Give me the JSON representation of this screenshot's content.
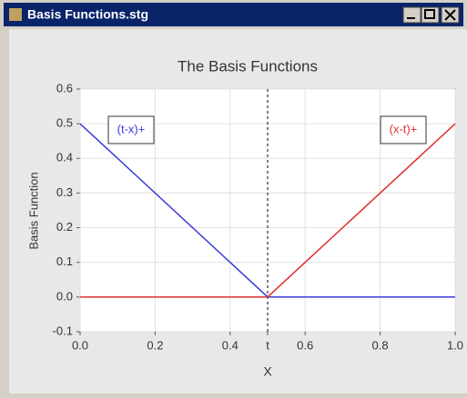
{
  "window": {
    "title": "Basis Functions.stg"
  },
  "chart_data": {
    "type": "line",
    "title": "The Basis Functions",
    "xlabel": "X",
    "ylabel": "Basis Function",
    "x": [
      0,
      0.5,
      1
    ],
    "series": [
      {
        "name": "(t-x)+",
        "color": "#3a3adc",
        "values": [
          0.5,
          0,
          0
        ]
      },
      {
        "name": "(x-t)+",
        "color": "#e03030",
        "values": [
          0,
          0,
          0.5
        ]
      }
    ],
    "xlim": [
      0,
      1
    ],
    "xticks": [
      {
        "value": 0,
        "label": "0.0"
      },
      0.2,
      0.4,
      {
        "value": 0.5,
        "label": "t"
      },
      0.6,
      0.8,
      {
        "value": 1,
        "label": "1.0"
      }
    ],
    "ylim": [
      -0.1,
      0.6
    ],
    "yticks": [
      -0.1,
      {
        "value": 0,
        "label": "0.0"
      },
      0.1,
      0.2,
      0.3,
      0.4,
      0.5,
      0.6
    ],
    "grid": true
  }
}
